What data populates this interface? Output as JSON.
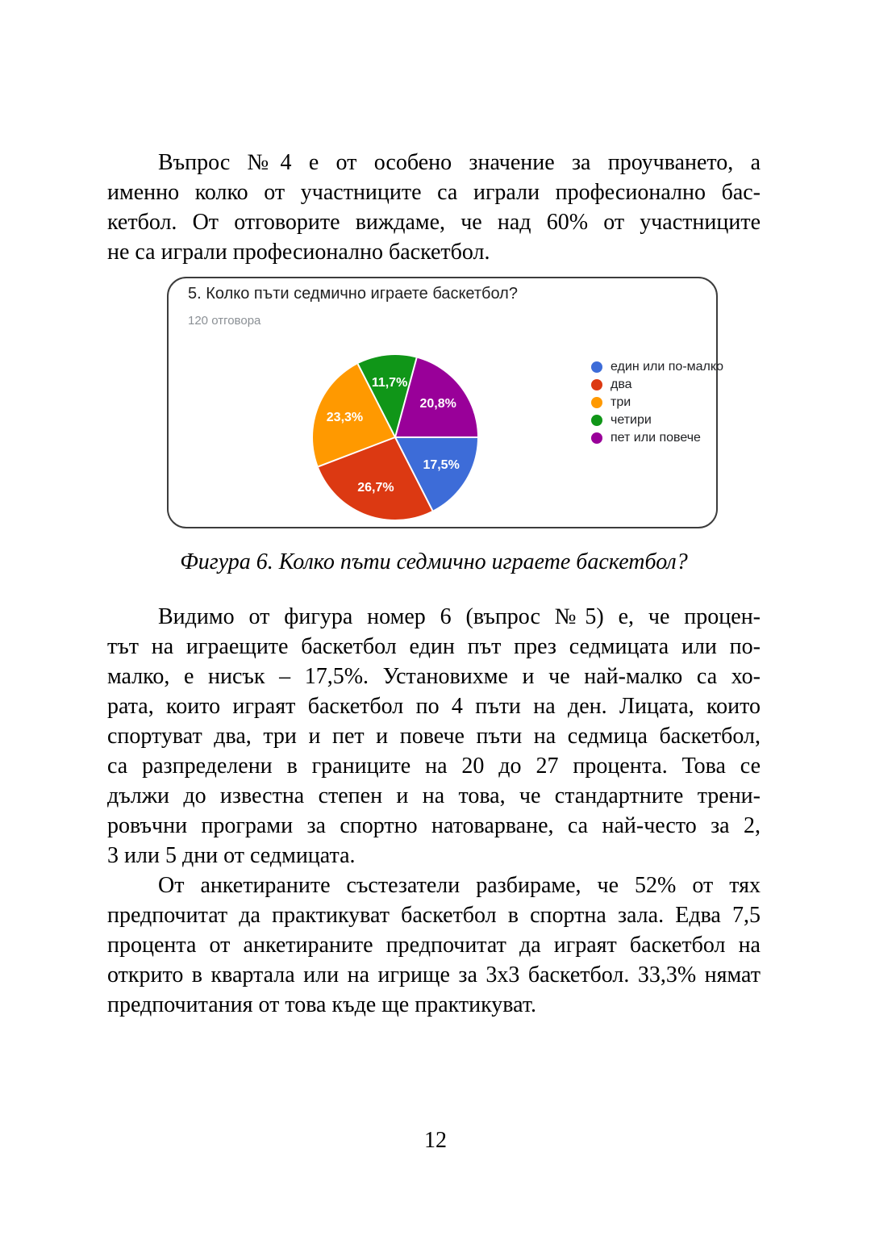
{
  "document": {
    "page_number": "12",
    "figure_caption": "Фигура 6. Колко пъти седмично играете баскетбол?",
    "paragraphs": [
      {
        "lines": [
          "Въпрос №4 е от особено значение за проучването, а",
          "именно колко от участниците са играли професионално бас-",
          "кетбол. От отговорите виждаме, че над 60% от участниците",
          "не са играли професионално баскетбол."
        ]
      },
      {
        "lines": [
          "Видимо от фигура номер 6 (въпрос №5) е, че процен-",
          "тът на играещите баскетбол един път през седмицата или по-",
          "малко, е нисък – 17,5%. Установихме и че най-малко са хо-",
          "рата, които играят баскетбол по 4 пъти на ден. Лицата, които",
          "спортуват два, три и пет и повече пъти на седмица баскетбол,",
          "са разпределени в границите на 20 до 27 процента. Това се",
          "дължи до известна степен и на това, че стандартните трени-",
          "ровъчни програми за спортно натоварване, са най-често за 2,",
          "3 или 5 дни от седмицата."
        ]
      },
      {
        "lines": [
          "От анкетираните състезатели разбираме, че 52% от тях",
          "предпочитат да практикуват баскетбол в спортна зала. Едва 7,5",
          "процента от анкетираните предпочитат да играят баскетбол на",
          "открито в квартала или на игрище за 3х3 баскетбол. 33,3% нямат",
          "предпочитания от това къде ще практикуват."
        ]
      }
    ]
  },
  "chart_data": {
    "type": "pie",
    "title": "5. Колко пъти седмично играете баскетбол?",
    "subtitle": "120 отговора",
    "unit": "%",
    "legend_position": "right",
    "start_angle_deg": 90,
    "slices": [
      {
        "label": "един или по-малко",
        "value_pct": 17.5,
        "display": "17,5%",
        "color": "#3D6CD8"
      },
      {
        "label": "два",
        "value_pct": 26.7,
        "display": "26,7%",
        "color": "#DC3912"
      },
      {
        "label": "три",
        "value_pct": 23.3,
        "display": "23,3%",
        "color": "#FF9900"
      },
      {
        "label": "четири",
        "value_pct": 11.7,
        "display": "11,7%",
        "color": "#109618"
      },
      {
        "label": "пет или повече",
        "value_pct": 20.8,
        "display": "20,8%",
        "color": "#990099"
      }
    ]
  }
}
